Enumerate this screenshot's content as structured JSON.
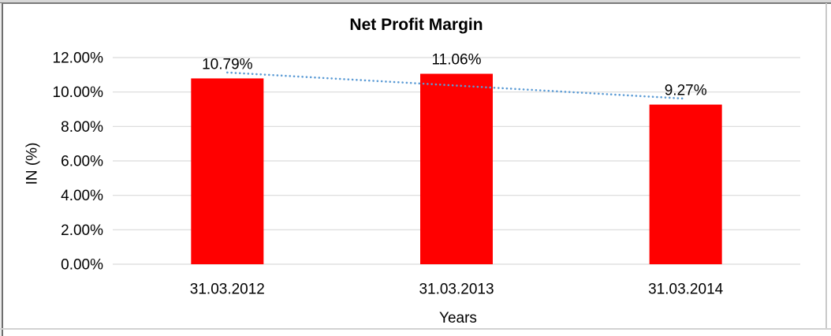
{
  "chart_data": {
    "type": "bar",
    "title": "Net Profit Margin",
    "xlabel": "Years",
    "ylabel": "IN (%)",
    "categories": [
      "31.03.2012",
      "31.03.2013",
      "31.03.2014"
    ],
    "values": [
      10.79,
      11.06,
      9.27
    ],
    "data_labels": [
      "10.79%",
      "11.06%",
      "9.27%"
    ],
    "y_ticks": [
      "0.00%",
      "2.00%",
      "4.00%",
      "6.00%",
      "8.00%",
      "10.00%",
      "12.00%"
    ],
    "ylim": [
      0,
      12
    ],
    "grid": true,
    "legend": "none",
    "bar_color": "#ff0000",
    "gridline_color": "#d9d9d9",
    "trendline": {
      "type": "linear",
      "style": "dotted",
      "color": "#5b9bd5"
    }
  }
}
